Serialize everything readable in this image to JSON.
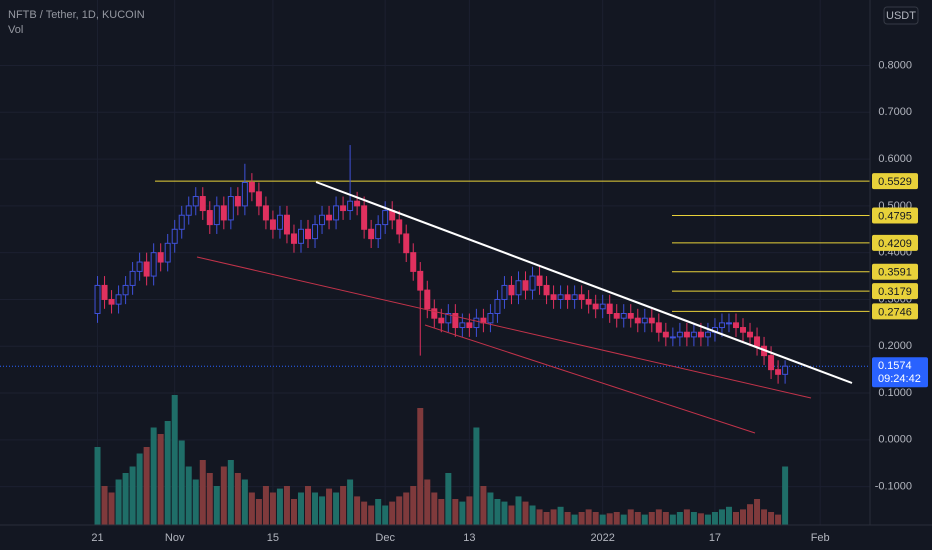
{
  "chart_data": {
    "type": "candlestick",
    "title": "NFTB / Tether, 1D, KUCOIN",
    "volume_label": "Vol",
    "currency": "USDT",
    "xlim": [
      -13.9,
      110.1
    ],
    "xticks": [
      {
        "value": 0,
        "label": "21"
      },
      {
        "value": 11,
        "label": "Nov"
      },
      {
        "value": 25,
        "label": "15"
      },
      {
        "value": 41,
        "label": "Dec"
      },
      {
        "value": 53,
        "label": "13"
      },
      {
        "value": 72,
        "label": "2022"
      },
      {
        "value": 88,
        "label": "17"
      },
      {
        "value": 103,
        "label": "Feb"
      }
    ],
    "ylim": [
      -0.182,
      0.94
    ],
    "yticks": [
      {
        "value": -0.1,
        "label": "-0.1000"
      },
      {
        "value": 0,
        "label": "0.0000"
      },
      {
        "value": 0.1,
        "label": "0.1000"
      },
      {
        "value": 0.2,
        "label": "0.2000"
      },
      {
        "value": 0.3,
        "label": "0.3000"
      },
      {
        "value": 0.4,
        "label": "0.4000"
      },
      {
        "value": 0.5,
        "label": "0.5000"
      },
      {
        "value": 0.6,
        "label": "0.6000"
      },
      {
        "value": 0.7,
        "label": "0.7000"
      },
      {
        "value": 0.8,
        "label": "0.8000"
      }
    ],
    "grid": true,
    "up_color": "#3f51d9",
    "down_color": "#e0315f",
    "volume_up_color": "#1f6e68",
    "volume_down_color": "#7f3a3c",
    "level_color": "#e8d13a",
    "price_color": "#2962ff",
    "open": [
      0.27,
      0.33,
      0.3,
      0.29,
      0.31,
      0.33,
      0.36,
      0.38,
      0.35,
      0.4,
      0.38,
      0.42,
      0.45,
      0.48,
      0.5,
      0.52,
      0.49,
      0.46,
      0.5,
      0.47,
      0.52,
      0.5,
      0.55,
      0.53,
      0.5,
      0.47,
      0.45,
      0.48,
      0.44,
      0.42,
      0.45,
      0.43,
      0.46,
      0.48,
      0.47,
      0.5,
      0.49,
      0.51,
      0.5,
      0.45,
      0.43,
      0.46,
      0.49,
      0.47,
      0.44,
      0.4,
      0.36,
      0.32,
      0.28,
      0.26,
      0.25,
      0.27,
      0.24,
      0.25,
      0.24,
      0.26,
      0.25,
      0.27,
      0.3,
      0.33,
      0.31,
      0.34,
      0.32,
      0.35,
      0.33,
      0.31,
      0.3,
      0.31,
      0.3,
      0.31,
      0.3,
      0.29,
      0.28,
      0.29,
      0.27,
      0.26,
      0.27,
      0.26,
      0.25,
      0.26,
      0.25,
      0.23,
      0.22,
      0.22,
      0.23,
      0.22,
      0.23,
      0.22,
      0.23,
      0.24,
      0.25,
      0.25,
      0.24,
      0.23,
      0.22,
      0.2,
      0.18,
      0.15,
      0.14
    ],
    "high": [
      0.35,
      0.35,
      0.32,
      0.33,
      0.35,
      0.38,
      0.4,
      0.4,
      0.42,
      0.42,
      0.44,
      0.47,
      0.5,
      0.52,
      0.54,
      0.54,
      0.51,
      0.52,
      0.52,
      0.54,
      0.54,
      0.59,
      0.57,
      0.55,
      0.52,
      0.49,
      0.5,
      0.5,
      0.46,
      0.47,
      0.47,
      0.48,
      0.5,
      0.5,
      0.52,
      0.52,
      0.63,
      0.53,
      0.52,
      0.47,
      0.48,
      0.51,
      0.51,
      0.49,
      0.46,
      0.42,
      0.38,
      0.34,
      0.3,
      0.28,
      0.29,
      0.29,
      0.27,
      0.27,
      0.28,
      0.28,
      0.29,
      0.32,
      0.35,
      0.35,
      0.36,
      0.36,
      0.37,
      0.37,
      0.35,
      0.33,
      0.33,
      0.33,
      0.33,
      0.33,
      0.32,
      0.31,
      0.31,
      0.31,
      0.29,
      0.29,
      0.29,
      0.28,
      0.28,
      0.28,
      0.27,
      0.25,
      0.24,
      0.25,
      0.25,
      0.25,
      0.25,
      0.25,
      0.26,
      0.27,
      0.27,
      0.27,
      0.26,
      0.25,
      0.24,
      0.22,
      0.2,
      0.17,
      0.17
    ],
    "low": [
      0.25,
      0.28,
      0.27,
      0.27,
      0.29,
      0.31,
      0.34,
      0.33,
      0.33,
      0.36,
      0.36,
      0.4,
      0.43,
      0.46,
      0.48,
      0.47,
      0.44,
      0.44,
      0.45,
      0.45,
      0.48,
      0.48,
      0.51,
      0.48,
      0.45,
      0.43,
      0.43,
      0.42,
      0.4,
      0.4,
      0.41,
      0.41,
      0.44,
      0.45,
      0.45,
      0.47,
      0.47,
      0.48,
      0.43,
      0.41,
      0.41,
      0.44,
      0.45,
      0.42,
      0.38,
      0.34,
      0.18,
      0.26,
      0.24,
      0.23,
      0.23,
      0.22,
      0.22,
      0.22,
      0.22,
      0.23,
      0.23,
      0.25,
      0.28,
      0.29,
      0.29,
      0.3,
      0.3,
      0.31,
      0.29,
      0.28,
      0.28,
      0.28,
      0.28,
      0.28,
      0.27,
      0.26,
      0.26,
      0.25,
      0.24,
      0.24,
      0.24,
      0.23,
      0.23,
      0.23,
      0.21,
      0.2,
      0.2,
      0.2,
      0.2,
      0.2,
      0.2,
      0.2,
      0.21,
      0.22,
      0.23,
      0.22,
      0.21,
      0.2,
      0.18,
      0.16,
      0.13,
      0.12,
      0.12
    ],
    "close": [
      0.33,
      0.3,
      0.29,
      0.31,
      0.33,
      0.36,
      0.38,
      0.35,
      0.4,
      0.38,
      0.42,
      0.45,
      0.48,
      0.5,
      0.52,
      0.49,
      0.46,
      0.5,
      0.47,
      0.52,
      0.5,
      0.55,
      0.53,
      0.5,
      0.47,
      0.45,
      0.48,
      0.44,
      0.42,
      0.45,
      0.43,
      0.46,
      0.48,
      0.47,
      0.5,
      0.49,
      0.51,
      0.5,
      0.45,
      0.43,
      0.46,
      0.49,
      0.47,
      0.44,
      0.4,
      0.36,
      0.32,
      0.28,
      0.26,
      0.25,
      0.27,
      0.24,
      0.25,
      0.24,
      0.26,
      0.25,
      0.27,
      0.3,
      0.33,
      0.31,
      0.34,
      0.32,
      0.35,
      0.33,
      0.31,
      0.3,
      0.31,
      0.3,
      0.31,
      0.3,
      0.29,
      0.28,
      0.29,
      0.27,
      0.26,
      0.27,
      0.26,
      0.25,
      0.26,
      0.25,
      0.23,
      0.22,
      0.22,
      0.23,
      0.22,
      0.23,
      0.22,
      0.23,
      0.24,
      0.25,
      0.25,
      0.24,
      0.23,
      0.22,
      0.2,
      0.18,
      0.15,
      0.14,
      0.1574
    ],
    "volume": [
      60,
      30,
      25,
      35,
      40,
      45,
      55,
      60,
      75,
      70,
      80,
      100,
      65,
      45,
      35,
      50,
      40,
      30,
      45,
      50,
      40,
      35,
      25,
      20,
      30,
      25,
      28,
      30,
      20,
      25,
      30,
      25,
      22,
      28,
      25,
      30,
      35,
      22,
      18,
      15,
      20,
      15,
      18,
      22,
      25,
      30,
      90,
      35,
      25,
      20,
      40,
      20,
      18,
      22,
      75,
      30,
      25,
      20,
      18,
      15,
      22,
      18,
      15,
      12,
      10,
      12,
      14,
      10,
      8,
      10,
      12,
      10,
      8,
      9,
      10,
      8,
      12,
      10,
      8,
      10,
      12,
      10,
      8,
      10,
      12,
      10,
      9,
      8,
      10,
      12,
      14,
      10,
      12,
      16,
      20,
      12,
      10,
      8,
      45
    ],
    "levels": [
      0.5529,
      0.4795,
      0.4209,
      0.3591,
      0.3179,
      0.2746
    ],
    "last_price": 0.1574,
    "countdown": "09:24:42"
  }
}
